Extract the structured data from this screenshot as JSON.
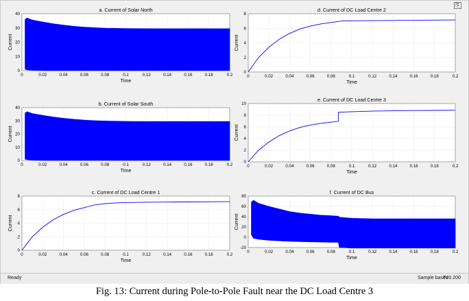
{
  "status": {
    "left": "Ready",
    "sample": "Sample based",
    "time": "T=0.200"
  },
  "caption": "Fig. 13: Current during Pole-to-Pole Fault near the DC Load Centre 3",
  "colors": {
    "trace": "#0000ff",
    "plot_bg": "#ffffff",
    "window_bg": "#f0f0f0"
  },
  "icons": {
    "float_button": "float-window-icon"
  },
  "chart_data": [
    {
      "type": "area",
      "title": "a. Current of Solar North",
      "xlabel": "Time",
      "ylabel": "Current",
      "xlim": [
        0,
        0.2
      ],
      "ylim": [
        0,
        40
      ],
      "xticks": [
        "0",
        "0.02",
        "0.04",
        "0.06",
        "0.08",
        "0.1",
        "0.12",
        "0.14",
        "0.16",
        "0.18",
        "0.2"
      ],
      "yticks": [
        "0",
        "10",
        "20",
        "30",
        "40"
      ],
      "series": [
        {
          "x": [
            0.003,
            0.005,
            0.01,
            0.02,
            0.03,
            0.04,
            0.05,
            0.06,
            0.07,
            0.08,
            0.1,
            0.12,
            0.14,
            0.16,
            0.18,
            0.2
          ],
          "upper": [
            36,
            37,
            35.6,
            34.2,
            33,
            32,
            31.2,
            30.6,
            30.2,
            29.9,
            29.6,
            29.5,
            29.5,
            29.5,
            29.5,
            29.5
          ],
          "lower": [
            1,
            0.5,
            0.2,
            0,
            0,
            0,
            0,
            0,
            0,
            0,
            0,
            0,
            0,
            0,
            0,
            0
          ]
        }
      ]
    },
    {
      "type": "area",
      "title": "b. Current of Solar South",
      "xlabel": "Time",
      "ylabel": "Current",
      "xlim": [
        0,
        0.2
      ],
      "ylim": [
        0,
        40
      ],
      "xticks": [
        "0",
        "0.02",
        "0.04",
        "0.06",
        "0.08",
        "0.1",
        "0.12",
        "0.14",
        "0.16",
        "0.18",
        "0.2"
      ],
      "yticks": [
        "0",
        "10",
        "20",
        "30",
        "40"
      ],
      "series": [
        {
          "x": [
            0.003,
            0.005,
            0.01,
            0.02,
            0.03,
            0.04,
            0.05,
            0.06,
            0.07,
            0.08,
            0.1,
            0.12,
            0.14,
            0.16,
            0.18,
            0.2
          ],
          "upper": [
            36,
            37,
            35.6,
            34.2,
            33,
            32,
            31.2,
            30.6,
            30.2,
            29.9,
            29.6,
            29.5,
            29.5,
            29.5,
            29.5,
            29.5
          ],
          "lower": [
            1,
            0.5,
            0.2,
            0,
            0,
            0,
            0,
            0,
            0,
            0,
            0,
            0,
            0,
            0,
            0,
            0
          ]
        }
      ]
    },
    {
      "type": "line",
      "title": "c. Current of DC Load Centre 1",
      "xlabel": "Time",
      "ylabel": "Current",
      "xlim": [
        0,
        0.2
      ],
      "ylim": [
        0,
        8
      ],
      "xticks": [
        "0",
        "0.02",
        "0.04",
        "0.06",
        "0.08",
        "0.1",
        "0.12",
        "0.14",
        "0.16",
        "0.18",
        "0.2"
      ],
      "yticks": [
        "0",
        "2",
        "4",
        "6",
        "8"
      ],
      "series": [
        {
          "x": [
            0,
            0.01,
            0.02,
            0.03,
            0.04,
            0.05,
            0.06,
            0.07,
            0.08,
            0.09,
            0.1,
            0.12,
            0.14,
            0.16,
            0.18,
            0.2
          ],
          "y": [
            0,
            2.0,
            3.4,
            4.5,
            5.3,
            5.9,
            6.3,
            6.7,
            6.9,
            7.0,
            7.05,
            7.1,
            7.12,
            7.14,
            7.16,
            7.18
          ]
        }
      ]
    },
    {
      "type": "line",
      "title": "d. Current of DC Load Centre 2",
      "xlabel": "Time",
      "ylabel": "Current",
      "xlim": [
        0,
        0.2
      ],
      "ylim": [
        0,
        8
      ],
      "xticks": [
        "0",
        "0.02",
        "0.04",
        "0.06",
        "0.08",
        "0.1",
        "0.12",
        "0.14",
        "0.16",
        "0.18",
        "0.2"
      ],
      "yticks": [
        "0",
        "2",
        "4",
        "6",
        "8"
      ],
      "series": [
        {
          "x": [
            0,
            0.01,
            0.02,
            0.03,
            0.04,
            0.05,
            0.06,
            0.07,
            0.08,
            0.088,
            0.09,
            0.1,
            0.12,
            0.14,
            0.16,
            0.18,
            0.2
          ],
          "y": [
            0,
            2.0,
            3.4,
            4.5,
            5.3,
            5.9,
            6.3,
            6.6,
            6.8,
            6.95,
            7.0,
            7.02,
            7.05,
            7.08,
            7.1,
            7.12,
            7.14
          ]
        }
      ]
    },
    {
      "type": "line",
      "title": "e. Current of DC Load Centre 3",
      "xlabel": "Time",
      "ylabel": "Current",
      "xlim": [
        0,
        0.2
      ],
      "ylim": [
        0,
        10
      ],
      "xticks": [
        "0",
        "0.02",
        "0.04",
        "0.06",
        "0.08",
        "0.1",
        "0.12",
        "0.14",
        "0.16",
        "0.18",
        "0.2"
      ],
      "yticks": [
        "0",
        "2",
        "4",
        "6",
        "8",
        "10"
      ],
      "series": [
        {
          "x": [
            0,
            0.01,
            0.02,
            0.03,
            0.04,
            0.05,
            0.06,
            0.07,
            0.08,
            0.087,
            0.0871,
            0.1,
            0.12,
            0.14,
            0.16,
            0.18,
            0.2
          ],
          "y": [
            0,
            2.0,
            3.4,
            4.5,
            5.3,
            5.9,
            6.3,
            6.6,
            6.8,
            6.95,
            8.5,
            8.6,
            8.7,
            8.75,
            8.8,
            8.82,
            8.85
          ]
        }
      ]
    },
    {
      "type": "area",
      "title": "f. Current of DC Bus",
      "xlabel": "Time",
      "ylabel": "Current",
      "xlim": [
        0,
        0.2
      ],
      "ylim": [
        -20,
        80
      ],
      "xticks": [
        "0",
        "0.02",
        "0.04",
        "0.06",
        "0.08",
        "0.1",
        "0.12",
        "0.14",
        "0.16",
        "0.18",
        "0.2"
      ],
      "yticks": [
        "-20",
        "0",
        "20",
        "40",
        "60",
        "80"
      ],
      "series": [
        {
          "x": [
            0.003,
            0.005,
            0.01,
            0.02,
            0.03,
            0.04,
            0.05,
            0.06,
            0.07,
            0.08,
            0.087,
            0.088,
            0.1,
            0.12,
            0.14,
            0.16,
            0.18,
            0.2
          ],
          "upper": [
            68,
            72,
            66,
            60,
            55,
            50,
            47,
            45,
            43,
            42,
            41,
            39,
            37,
            36,
            36,
            36,
            36,
            36
          ],
          "lower": [
            5,
            -2,
            -4,
            -6,
            -7,
            -8,
            -8.5,
            -9,
            -9.5,
            -10,
            -10,
            -20,
            -21,
            -21,
            -21,
            -21,
            -21,
            -21
          ]
        }
      ]
    }
  ]
}
